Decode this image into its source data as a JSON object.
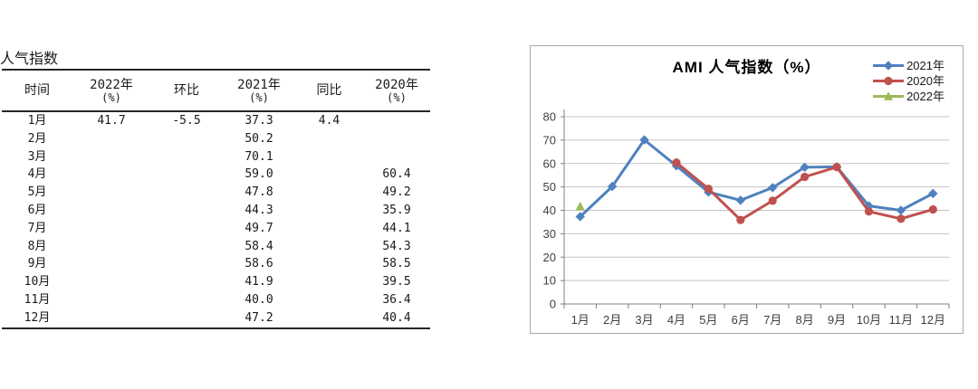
{
  "chart_data": [
    {
      "type": "table",
      "title": "人气指数",
      "columns": [
        {
          "label": "时间",
          "sub": ""
        },
        {
          "label": "2022年",
          "sub": "(%)"
        },
        {
          "label": "环比",
          "sub": ""
        },
        {
          "label": "2021年",
          "sub": "(%)"
        },
        {
          "label": "同比",
          "sub": ""
        },
        {
          "label": "2020年",
          "sub": "(%)"
        }
      ],
      "rows": [
        [
          "1月",
          "41.7",
          "-5.5",
          "37.3",
          "4.4",
          ""
        ],
        [
          "2月",
          "",
          "",
          "50.2",
          "",
          ""
        ],
        [
          "3月",
          "",
          "",
          "70.1",
          "",
          ""
        ],
        [
          "4月",
          "",
          "",
          "59.0",
          "",
          "60.4"
        ],
        [
          "5月",
          "",
          "",
          "47.8",
          "",
          "49.2"
        ],
        [
          "6月",
          "",
          "",
          "44.3",
          "",
          "35.9"
        ],
        [
          "7月",
          "",
          "",
          "49.7",
          "",
          "44.1"
        ],
        [
          "8月",
          "",
          "",
          "58.4",
          "",
          "54.3"
        ],
        [
          "9月",
          "",
          "",
          "58.6",
          "",
          "58.5"
        ],
        [
          "10月",
          "",
          "",
          "41.9",
          "",
          "39.5"
        ],
        [
          "11月",
          "",
          "",
          "40.0",
          "",
          "36.4"
        ],
        [
          "12月",
          "",
          "",
          "47.2",
          "",
          "40.4"
        ]
      ]
    },
    {
      "type": "line",
      "title": "AMI 人气指数（%）",
      "categories": [
        "1月",
        "2月",
        "3月",
        "4月",
        "5月",
        "6月",
        "7月",
        "8月",
        "9月",
        "10月",
        "11月",
        "12月"
      ],
      "series": [
        {
          "name": "2021年",
          "color": "#4F81BD",
          "marker": "diamond",
          "values": [
            37.3,
            50.2,
            70.1,
            59.0,
            47.8,
            44.3,
            49.7,
            58.4,
            58.6,
            41.9,
            40.0,
            47.2
          ]
        },
        {
          "name": "2020年",
          "color": "#C0504D",
          "marker": "circle",
          "values": [
            null,
            null,
            null,
            60.4,
            49.2,
            35.9,
            44.1,
            54.3,
            58.5,
            39.5,
            36.4,
            40.4
          ]
        },
        {
          "name": "2022年",
          "color": "#9BBB59",
          "marker": "triangle",
          "values": [
            41.7,
            null,
            null,
            null,
            null,
            null,
            null,
            null,
            null,
            null,
            null,
            null
          ]
        }
      ],
      "ylim": [
        0,
        80
      ],
      "yticks": [
        0,
        10,
        20,
        30,
        40,
        50,
        60,
        70,
        80
      ],
      "xlabel": "",
      "ylabel": "",
      "legend_position": "top-right",
      "grid": true,
      "colors": {
        "gridline": "#C3C3C3",
        "axis": "#808080",
        "border": "#ABABAB"
      }
    }
  ]
}
